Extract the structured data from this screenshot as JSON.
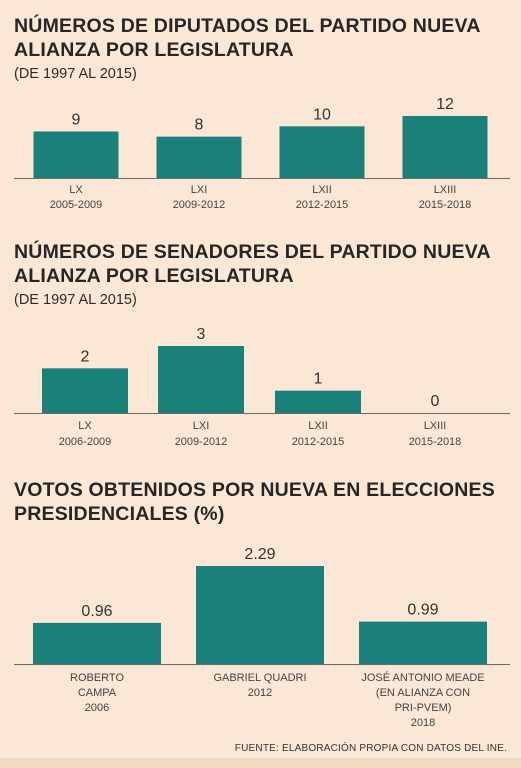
{
  "chart_data": [
    {
      "type": "bar",
      "title": "NÚMEROS DE DIPUTADOS DEL PARTIDO NUEVA ALIANZA POR LEGISLATURA",
      "subtitle": "(DE 1997 AL 2015)",
      "categories": [
        [
          "LX",
          "2005-2009"
        ],
        [
          "LXI",
          "2009-2012"
        ],
        [
          "LXII",
          "2012-2015"
        ],
        [
          "LXIII",
          "2015-2018"
        ]
      ],
      "values": [
        9,
        8,
        10,
        12
      ],
      "value_labels": [
        "9",
        "8",
        "10",
        "12"
      ],
      "ylim": [
        0,
        12
      ],
      "bar_color": "#1b7f7a"
    },
    {
      "type": "bar",
      "title": "NÚMEROS DE SENADORES DEL PARTIDO NUEVA ALIANZA POR LEGISLATURA",
      "subtitle": "(DE 1997 AL 2015)",
      "categories": [
        [
          "LX",
          "2006-2009"
        ],
        [
          "LXI",
          "2009-2012"
        ],
        [
          "LXII",
          "2012-2015"
        ],
        [
          "LXIII",
          "2015-2018"
        ]
      ],
      "values": [
        2,
        3,
        1,
        0
      ],
      "value_labels": [
        "2",
        "3",
        "1",
        "0"
      ],
      "ylim": [
        0,
        3
      ],
      "bar_color": "#1b7f7a"
    },
    {
      "type": "bar",
      "title": "VOTOS OBTENIDOS POR NUEVA EN ELECCIONES PRESIDENCIALES (%)",
      "subtitle": "",
      "categories": [
        [
          "ROBERTO",
          "CAMPA",
          "2006"
        ],
        [
          "GABRIEL QUADRI",
          "2012"
        ],
        [
          "JOSÉ ANTONIO MEADE",
          "(EN ALIANZA CON",
          "PRI-PVEM)",
          "2018"
        ]
      ],
      "values": [
        0.96,
        2.29,
        0.99
      ],
      "value_labels": [
        "0.96",
        "2.29",
        "0.99"
      ],
      "ylim": [
        0,
        2.29
      ],
      "bar_color": "#1b7f7a"
    }
  ],
  "source": "FUENTE:  ELABORACIÓN PROPIA CON DATOS DEL INE."
}
